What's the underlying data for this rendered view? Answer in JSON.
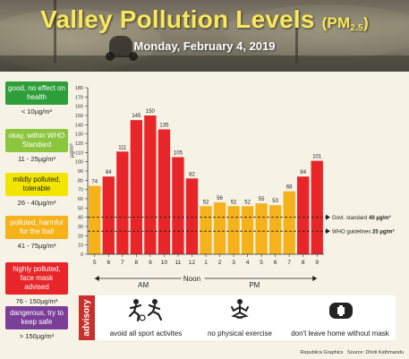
{
  "header": {
    "title": "Valley Pollution Levels",
    "unit_main": "(PM",
    "unit_sub": "2.5",
    "unit_close": ")",
    "date": "Monday, February 4, 2019"
  },
  "legend": [
    {
      "label": "good, no effect on health",
      "range": "< 10µg/m³",
      "color": "#2e9e3a"
    },
    {
      "label": "okay, within WHO Standard",
      "range": "11 - 25µg/m³",
      "color": "#8cc63f"
    },
    {
      "label": "mildly polluted, tolerable",
      "range": "26 - 40µg/m³",
      "color": "#f2e600"
    },
    {
      "label": "polluted, harmful for the frail",
      "range": "41 - 75µg/m³",
      "color": "#f6b21b"
    },
    {
      "label": "highly polluted, face mask advised",
      "range": "76 - 150µg/m³",
      "color": "#e8262a"
    },
    {
      "label": "dangerous, try to keep safe",
      "range": "> 150µg/m³",
      "color": "#7b3f98"
    }
  ],
  "chart_data": {
    "type": "bar",
    "categories": [
      "5",
      "6",
      "7",
      "8",
      "9",
      "10",
      "11",
      "12",
      "1",
      "2",
      "3",
      "4",
      "5",
      "6",
      "7",
      "8",
      "9"
    ],
    "values": [
      74,
      84,
      111,
      145,
      150,
      135,
      105,
      82,
      52,
      56,
      52,
      52,
      55,
      53,
      68,
      84,
      101
    ],
    "ylabel": "µg/m³",
    "ylim": [
      0,
      180
    ],
    "yticks": [
      0,
      10,
      20,
      30,
      40,
      50,
      60,
      70,
      80,
      90,
      100,
      110,
      120,
      130,
      140,
      150,
      160,
      170,
      180
    ],
    "period_labels": [
      "AM",
      "Noon",
      "PM"
    ],
    "reference_lines": [
      {
        "value": 40,
        "label": "Govt. standard",
        "value_label": "40 µg/m³"
      },
      {
        "value": 25,
        "label": "WHO guidelines",
        "value_label": "25 µg/m³"
      }
    ],
    "colors": {
      "high": "#e8262a",
      "moderate": "#f6b21b"
    }
  },
  "advisory": {
    "tab_label": "advisory",
    "items": [
      {
        "label": "avoid all sport activites",
        "icon": "sport-icon"
      },
      {
        "label": "no physical exercise",
        "icon": "exercise-icon"
      },
      {
        "label": "don't leave home without mask",
        "icon": "mask-icon"
      }
    ]
  },
  "credit": {
    "publisher": "Republica Graphics",
    "source": "Source: Dhoti Kathmandu"
  }
}
